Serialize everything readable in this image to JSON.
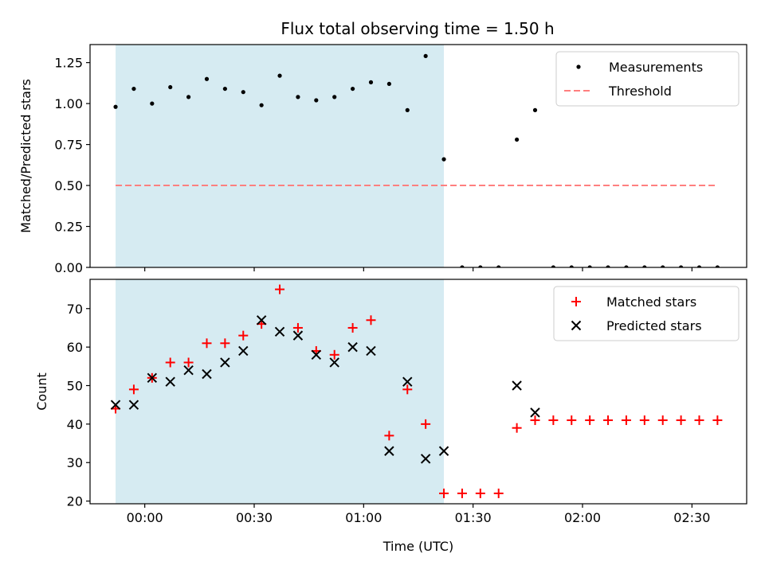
{
  "title": "Flux total observing time = 1.50 h",
  "colors": {
    "shade": "#add8e6",
    "measurement": "#000000",
    "threshold": "#ff7f7f",
    "matched": "#ff0000",
    "predicted": "#000000"
  },
  "chart_data": [
    {
      "type": "scatter",
      "panel": "top",
      "ylabel": "Matched/Predicted stars",
      "xlabel": "",
      "xlim": [
        "23:45",
        "02:45"
      ],
      "ylim": [
        0,
        1.36
      ],
      "y_ticks": [
        "0.00",
        "0.25",
        "0.50",
        "0.75",
        "1.00",
        "1.25"
      ],
      "legend_position": "top-right",
      "shaded_region": {
        "x_start": "23:52",
        "x_end": "01:22"
      },
      "series": [
        {
          "name": "Measurements",
          "marker": "dot",
          "x": [
            "23:52",
            "23:57",
            "00:02",
            "00:07",
            "00:12",
            "00:17",
            "00:22",
            "00:27",
            "00:32",
            "00:37",
            "00:42",
            "00:47",
            "00:52",
            "00:57",
            "01:02",
            "01:07",
            "01:12",
            "01:17",
            "01:22",
            "01:27",
            "01:32",
            "01:37",
            "01:42",
            "01:47",
            "01:52",
            "01:57",
            "02:02",
            "02:07",
            "02:12",
            "02:17",
            "02:22",
            "02:27",
            "02:32",
            "02:37"
          ],
          "y": [
            0.98,
            1.09,
            1.0,
            1.1,
            1.04,
            1.15,
            1.09,
            1.07,
            0.99,
            1.17,
            1.04,
            1.02,
            1.04,
            1.09,
            1.13,
            1.12,
            0.96,
            1.29,
            0.66,
            0,
            0,
            0,
            0.78,
            0.96,
            0,
            0,
            0,
            0,
            0,
            0,
            0,
            0,
            0,
            0
          ]
        },
        {
          "name": "Threshold",
          "style": "dashed",
          "x": [
            "23:52",
            "02:37"
          ],
          "y": [
            0.5,
            0.5
          ]
        }
      ]
    },
    {
      "type": "scatter",
      "panel": "bottom",
      "ylabel": "Count",
      "xlabel": "Time (UTC)",
      "xlim": [
        "23:45",
        "02:45"
      ],
      "ylim": [
        19.3,
        77.6
      ],
      "y_ticks": [
        "20",
        "30",
        "40",
        "50",
        "60",
        "70"
      ],
      "x_ticks": [
        "00:00",
        "00:30",
        "01:00",
        "01:30",
        "02:00",
        "02:30"
      ],
      "legend_position": "top-right",
      "shaded_region": {
        "x_start": "23:52",
        "x_end": "01:22"
      },
      "series": [
        {
          "name": "Matched stars",
          "marker": "plus",
          "x": [
            "23:52",
            "23:57",
            "00:02",
            "00:07",
            "00:12",
            "00:17",
            "00:22",
            "00:27",
            "00:32",
            "00:37",
            "00:42",
            "00:47",
            "00:52",
            "00:57",
            "01:02",
            "01:07",
            "01:12",
            "01:17",
            "01:22",
            "01:27",
            "01:32",
            "01:37",
            "01:42",
            "01:47",
            "01:52",
            "01:57",
            "02:02",
            "02:07",
            "02:12",
            "02:17",
            "02:22",
            "02:27",
            "02:32",
            "02:37"
          ],
          "y": [
            44,
            49,
            52,
            56,
            56,
            61,
            61,
            63,
            66,
            75,
            65,
            59,
            58,
            65,
            67,
            37,
            49,
            40,
            22,
            22,
            22,
            22,
            39,
            41,
            41,
            41,
            41,
            41,
            41,
            41,
            41,
            41,
            41,
            41
          ]
        },
        {
          "name": "Predicted stars",
          "marker": "x",
          "x": [
            "23:52",
            "23:57",
            "00:02",
            "00:07",
            "00:12",
            "00:17",
            "00:22",
            "00:27",
            "00:32",
            "00:37",
            "00:42",
            "00:47",
            "00:52",
            "00:57",
            "01:02",
            "01:07",
            "01:12",
            "01:17",
            "01:22",
            "01:42",
            "01:47"
          ],
          "y": [
            45,
            45,
            52,
            51,
            54,
            53,
            56,
            59,
            67,
            64,
            63,
            58,
            56,
            60,
            59,
            33,
            51,
            31,
            33,
            50,
            43
          ]
        }
      ]
    }
  ]
}
